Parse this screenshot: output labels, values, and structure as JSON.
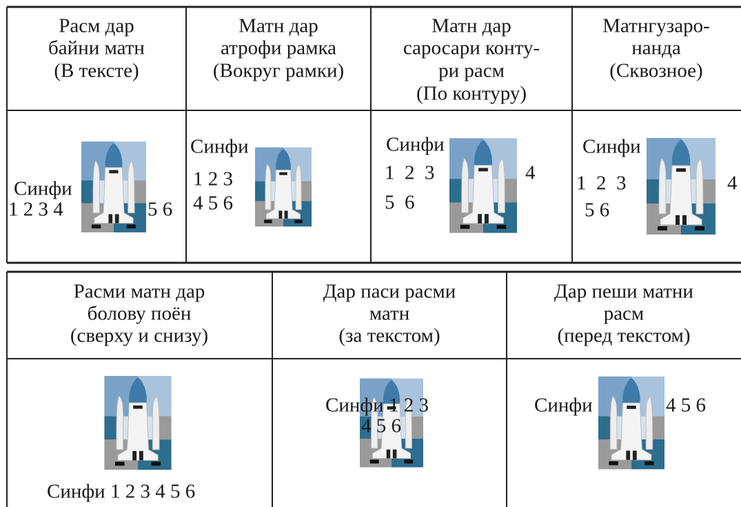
{
  "top_table": {
    "headers": [
      [
        "Расм дар",
        "байни матн",
        "(В тексте)"
      ],
      [
        "Матн дар",
        "атрофи рамка",
        "(Вокруг рамки)"
      ],
      [
        "Матн дар",
        "саросари конту-",
        "ри расм",
        "(По контуру)"
      ],
      [
        "Матнгузаро-",
        "нанда",
        "(Сквозное)"
      ]
    ],
    "examples": [
      [
        "Синфи",
        "1 2 3 4",
        "5 6"
      ],
      [
        "Синфи",
        "1 2 3",
        "4 5 6"
      ],
      [
        "Синфи",
        "1  2  3",
        "4",
        "5  6"
      ],
      [
        "Синфи",
        "1  2  3",
        "4",
        "5 6"
      ]
    ]
  },
  "bottom_table": {
    "headers": [
      [
        "Расми матн дар",
        "болову поён",
        "(сверху и снизу)"
      ],
      [
        "Дар паси расми",
        "матн",
        "(за текстом)"
      ],
      [
        "Дар пеши матни",
        "расм",
        "(перед текстом)"
      ]
    ],
    "examples": [
      [
        "Синфи 1 2 3 4 5 6"
      ],
      [
        "Синфи 1 2 3",
        "4 5 6"
      ],
      [
        "Синфи",
        "4 5 6"
      ]
    ]
  }
}
